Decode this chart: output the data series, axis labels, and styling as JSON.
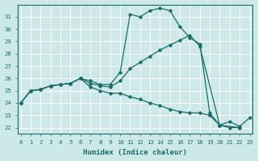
{
  "xlabel": "Humidex (Indice chaleur)",
  "background_color": "#cce8e8",
  "grid_color": "#aacccc",
  "line_color": "#1a6b6b",
  "x_ticks": [
    0,
    1,
    2,
    3,
    4,
    5,
    6,
    7,
    8,
    9,
    10,
    11,
    12,
    13,
    14,
    15,
    16,
    17,
    18,
    19,
    20,
    21,
    22,
    23
  ],
  "y_ticks": [
    22,
    23,
    24,
    25,
    26,
    27,
    28,
    29,
    30,
    31
  ],
  "ylim": [
    21.5,
    32.0
  ],
  "xlim": [
    -0.3,
    23.3
  ],
  "s1_x": [
    0,
    1,
    2,
    3,
    4,
    5,
    6,
    7,
    8,
    9,
    10,
    11,
    12,
    13,
    14,
    15,
    16,
    17,
    18,
    19,
    20,
    21,
    22
  ],
  "s1_y": [
    24.0,
    25.0,
    25.1,
    25.4,
    25.5,
    25.6,
    26.0,
    25.8,
    25.5,
    25.5,
    26.5,
    31.2,
    31.0,
    31.5,
    31.7,
    31.5,
    30.2,
    29.3,
    28.8,
    23.2,
    22.2,
    22.0,
    22.0
  ],
  "s2_x": [
    0,
    1,
    2,
    3,
    4,
    5,
    6,
    7,
    8,
    9,
    10,
    11,
    12,
    13,
    14,
    15,
    16,
    17,
    18,
    20,
    22
  ],
  "s2_y": [
    24.0,
    25.0,
    25.1,
    25.4,
    25.5,
    25.6,
    26.0,
    25.6,
    25.4,
    25.3,
    25.8,
    26.8,
    27.3,
    27.8,
    28.3,
    28.7,
    29.1,
    29.5,
    28.6,
    22.2,
    22.0
  ],
  "s3_x": [
    0,
    1,
    2,
    3,
    4,
    5,
    6,
    7,
    8,
    9,
    10,
    11,
    12,
    13,
    14,
    15,
    16,
    17,
    18,
    19,
    20,
    21,
    22,
    23
  ],
  "s3_y": [
    24.0,
    25.0,
    25.1,
    25.4,
    25.5,
    25.6,
    26.0,
    25.3,
    25.0,
    24.8,
    24.8,
    24.5,
    24.3,
    24.0,
    23.8,
    23.5,
    23.3,
    23.2,
    23.2,
    23.0,
    22.2,
    22.5,
    22.1,
    22.8
  ]
}
